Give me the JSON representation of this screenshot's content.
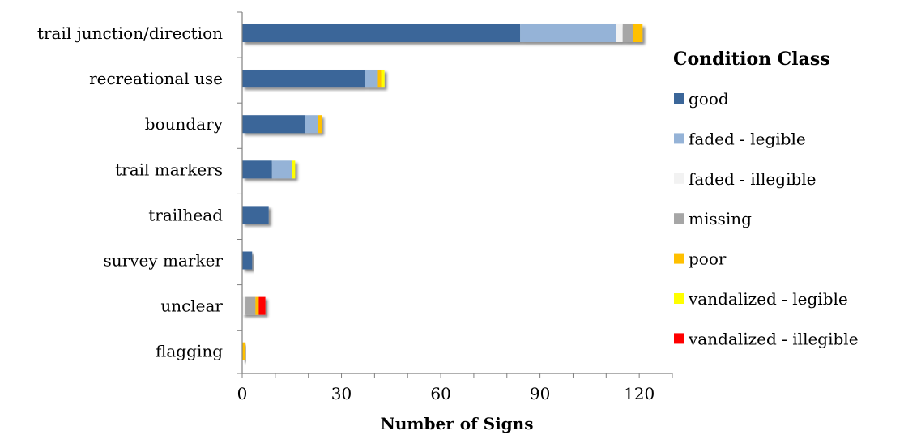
{
  "chart_data": {
    "type": "bar",
    "orientation": "horizontal",
    "stacked": true,
    "title": "",
    "xlabel": "Number of Signs",
    "ylabel": "",
    "xlim": [
      0,
      130
    ],
    "xticks": [
      0,
      30,
      60,
      90,
      120
    ],
    "grid": false,
    "legend_title": "Condition Class",
    "legend_position": "right",
    "categories": [
      "trail junction/direction",
      "recreational use",
      "boundary",
      "trail markers",
      "trailhead",
      "survey marker",
      "unclear",
      "flagging"
    ],
    "series": [
      {
        "name": "good",
        "color": "#3b6699",
        "values": [
          84,
          37,
          19,
          9,
          8,
          3,
          0,
          0
        ]
      },
      {
        "name": "faded - legible",
        "color": "#95b3d7",
        "values": [
          29,
          4,
          4,
          6,
          0,
          0,
          0,
          0
        ]
      },
      {
        "name": "faded - illegible",
        "color": "#f2f2f2",
        "values": [
          2,
          0,
          0,
          0,
          0,
          0,
          1,
          0
        ]
      },
      {
        "name": "missing",
        "color": "#a6a6a6",
        "values": [
          3,
          0,
          0,
          0,
          0,
          0,
          3,
          0
        ]
      },
      {
        "name": "poor",
        "color": "#ffc000",
        "values": [
          3,
          1,
          1,
          0,
          0,
          0,
          1,
          1
        ]
      },
      {
        "name": "vandalized - legible",
        "color": "#ffff00",
        "values": [
          0,
          1,
          0,
          1,
          0,
          0,
          0,
          0
        ]
      },
      {
        "name": "vandalized - illegible",
        "color": "#ff0000",
        "values": [
          0,
          0,
          0,
          0,
          0,
          0,
          2,
          0
        ]
      }
    ]
  }
}
